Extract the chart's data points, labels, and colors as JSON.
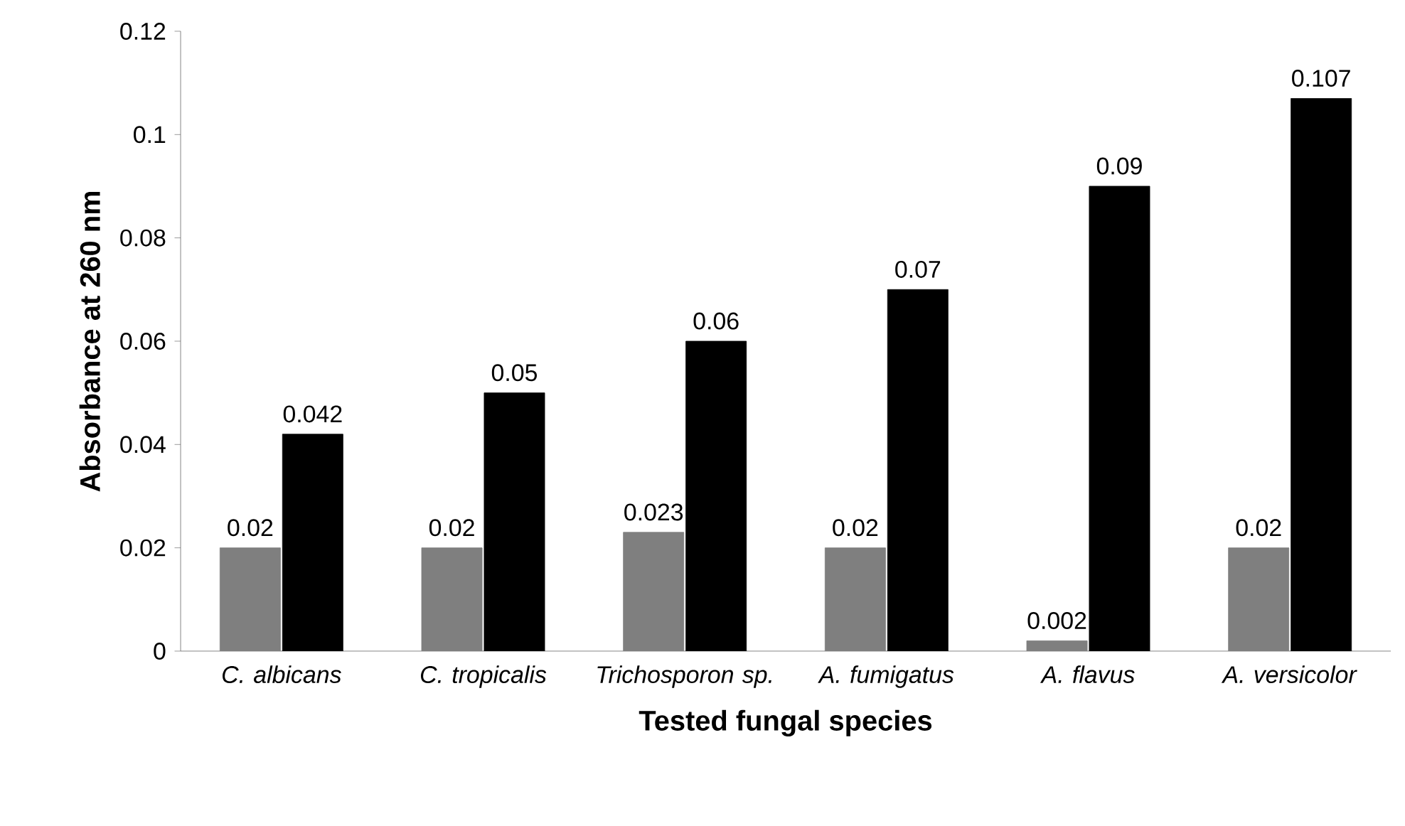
{
  "chart_data": {
    "type": "bar",
    "xlabel": "Tested fungal species",
    "ylabel": "Absorbance at 260 nm",
    "categories": [
      "*C. albicans*",
      "*C. tropicalis*",
      "*Trichosporon sp.*",
      "*A. fumigatus*",
      "*A. flavus*",
      "*A. versicolor*"
    ],
    "series": [
      {
        "color": "#7f7f7f",
        "values": [
          0.02,
          0.02,
          0.023,
          0.02,
          0.002,
          0.02
        ]
      },
      {
        "color": "#000000",
        "values": [
          0.042,
          0.05,
          0.06,
          0.07,
          0.09,
          0.107
        ]
      }
    ],
    "ylim": [
      0,
      0.12
    ],
    "yticks": [
      0,
      0.02,
      0.04,
      0.06,
      0.08,
      0.1,
      0.12
    ],
    "data_labels": true
  }
}
